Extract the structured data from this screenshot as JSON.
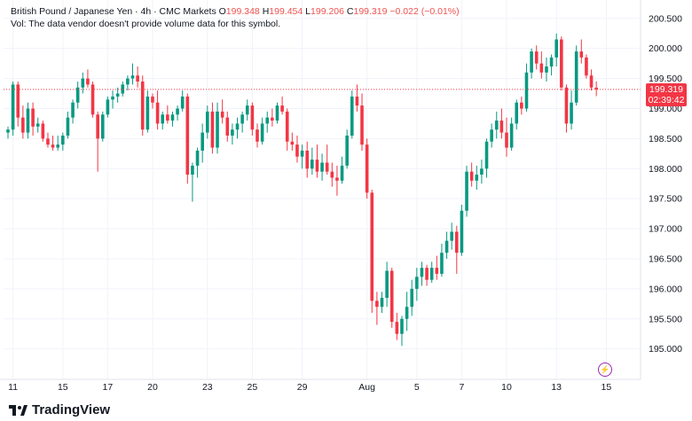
{
  "legend": {
    "symbol": "British Pound / Japanese Yen · 4h · CMC Markets",
    "o_label": "O",
    "o": "199.348",
    "h_label": "H",
    "h": "199.454",
    "l_label": "L",
    "l": "199.206",
    "c_label": "C",
    "c": "199.319",
    "change": "−0.022 (−0.01%)",
    "vol_note": "Vol: The data vendor doesn't provide volume data for this symbol."
  },
  "current_price": {
    "price": "199.319",
    "countdown": "02:39:42",
    "value": 199.319
  },
  "colors": {
    "up": "#089981",
    "down": "#f23645",
    "grid": "#f0f3fa",
    "axis_text": "#131722",
    "price_line": "#f23645"
  },
  "branding": {
    "name": "TradingView"
  },
  "chart_data": {
    "type": "candlestick",
    "title": "British Pound / Japanese Yen · 4h · CMC Markets",
    "ylim": [
      194.7,
      200.6
    ],
    "y_ticks": [
      195.0,
      195.5,
      196.0,
      196.5,
      197.0,
      197.5,
      198.0,
      198.5,
      199.0,
      199.5,
      200.0,
      200.5
    ],
    "x_ticks": [
      {
        "label": "11",
        "index": 1
      },
      {
        "label": "15",
        "index": 11
      },
      {
        "label": "17",
        "index": 20
      },
      {
        "label": "20",
        "index": 29
      },
      {
        "label": "23",
        "index": 40
      },
      {
        "label": "25",
        "index": 49
      },
      {
        "label": "29",
        "index": 59
      },
      {
        "label": "Aug",
        "index": 72
      },
      {
        "label": "5",
        "index": 82
      },
      {
        "label": "7",
        "index": 91
      },
      {
        "label": "10",
        "index": 100
      },
      {
        "label": "13",
        "index": 110
      },
      {
        "label": "15",
        "index": 120
      }
    ],
    "candles": [
      [
        198.6,
        198.7,
        198.5,
        198.65
      ],
      [
        198.65,
        199.45,
        198.55,
        199.4
      ],
      [
        199.4,
        199.45,
        198.7,
        198.85
      ],
      [
        198.85,
        199.05,
        198.5,
        198.6
      ],
      [
        198.6,
        199.1,
        198.5,
        199.0
      ],
      [
        199.0,
        199.1,
        198.55,
        198.7
      ],
      [
        198.7,
        198.85,
        198.6,
        198.75
      ],
      [
        198.75,
        198.8,
        198.45,
        198.5
      ],
      [
        198.5,
        198.6,
        198.35,
        198.4
      ],
      [
        198.4,
        198.55,
        198.3,
        198.35
      ],
      [
        198.35,
        198.55,
        198.3,
        198.4
      ],
      [
        198.4,
        198.6,
        198.3,
        198.55
      ],
      [
        198.55,
        198.95,
        198.5,
        198.85
      ],
      [
        198.85,
        199.15,
        198.75,
        199.1
      ],
      [
        199.1,
        199.45,
        199.0,
        199.35
      ],
      [
        199.35,
        199.6,
        199.25,
        199.5
      ],
      [
        199.5,
        199.65,
        199.35,
        199.4
      ],
      [
        199.4,
        199.45,
        198.85,
        198.9
      ],
      [
        198.9,
        198.95,
        197.95,
        198.5
      ],
      [
        198.5,
        198.95,
        198.45,
        198.9
      ],
      [
        198.9,
        199.2,
        198.85,
        199.15
      ],
      [
        199.15,
        199.3,
        199.0,
        199.2
      ],
      [
        199.2,
        199.35,
        199.1,
        199.25
      ],
      [
        199.25,
        199.45,
        199.2,
        199.4
      ],
      [
        199.4,
        199.55,
        199.3,
        199.5
      ],
      [
        199.5,
        199.75,
        199.4,
        199.55
      ],
      [
        199.55,
        199.7,
        199.35,
        199.45
      ],
      [
        199.45,
        199.55,
        198.55,
        198.65
      ],
      [
        198.65,
        199.3,
        198.6,
        199.2
      ],
      [
        199.2,
        199.25,
        199.0,
        199.1
      ],
      [
        199.1,
        199.3,
        198.65,
        198.75
      ],
      [
        198.75,
        198.95,
        198.65,
        198.9
      ],
      [
        198.9,
        199.05,
        198.75,
        198.8
      ],
      [
        198.8,
        198.95,
        198.7,
        198.9
      ],
      [
        198.9,
        199.05,
        198.8,
        199.0
      ],
      [
        199.0,
        199.3,
        198.95,
        199.2
      ],
      [
        199.2,
        199.25,
        197.75,
        197.9
      ],
      [
        197.9,
        198.1,
        197.45,
        198.05
      ],
      [
        198.05,
        198.35,
        197.85,
        198.3
      ],
      [
        198.3,
        198.75,
        198.1,
        198.6
      ],
      [
        198.6,
        199.05,
        198.5,
        198.95
      ],
      [
        198.95,
        199.1,
        198.25,
        198.35
      ],
      [
        198.35,
        199.1,
        198.25,
        198.95
      ],
      [
        198.95,
        199.15,
        198.75,
        198.85
      ],
      [
        198.85,
        198.95,
        198.45,
        198.55
      ],
      [
        198.55,
        198.75,
        198.4,
        198.65
      ],
      [
        198.65,
        198.85,
        198.5,
        198.75
      ],
      [
        198.75,
        198.95,
        198.6,
        198.9
      ],
      [
        198.9,
        199.15,
        198.8,
        199.05
      ],
      [
        199.05,
        199.1,
        198.55,
        198.65
      ],
      [
        198.65,
        198.75,
        198.35,
        198.45
      ],
      [
        198.45,
        198.85,
        198.4,
        198.75
      ],
      [
        198.75,
        198.95,
        198.6,
        198.85
      ],
      [
        198.85,
        199.0,
        198.7,
        198.8
      ],
      [
        198.8,
        199.1,
        198.75,
        199.05
      ],
      [
        199.05,
        199.2,
        198.9,
        198.95
      ],
      [
        198.95,
        199.0,
        198.3,
        198.45
      ],
      [
        198.45,
        198.6,
        198.3,
        198.4
      ],
      [
        198.4,
        198.55,
        198.1,
        198.2
      ],
      [
        198.2,
        198.4,
        198.0,
        198.3
      ],
      [
        198.3,
        198.45,
        197.85,
        198.0
      ],
      [
        198.0,
        198.35,
        197.9,
        198.15
      ],
      [
        198.15,
        198.4,
        197.85,
        197.95
      ],
      [
        197.95,
        198.25,
        197.8,
        198.1
      ],
      [
        198.1,
        198.4,
        197.9,
        197.95
      ],
      [
        197.95,
        198.1,
        197.7,
        197.85
      ],
      [
        197.85,
        198.05,
        197.55,
        197.8
      ],
      [
        197.8,
        198.2,
        197.75,
        198.05
      ],
      [
        198.05,
        198.65,
        198.0,
        198.55
      ],
      [
        198.55,
        199.3,
        198.5,
        199.2
      ],
      [
        199.2,
        199.4,
        198.95,
        199.05
      ],
      [
        199.05,
        199.25,
        198.3,
        198.4
      ],
      [
        198.4,
        198.5,
        197.5,
        197.6
      ],
      [
        197.6,
        197.65,
        195.6,
        195.8
      ],
      [
        195.8,
        195.95,
        195.4,
        195.7
      ],
      [
        195.7,
        195.95,
        195.6,
        195.85
      ],
      [
        195.85,
        196.45,
        195.7,
        196.3
      ],
      [
        196.3,
        196.35,
        195.35,
        195.45
      ],
      [
        195.45,
        195.6,
        195.15,
        195.25
      ],
      [
        195.25,
        195.55,
        195.05,
        195.5
      ],
      [
        195.5,
        195.95,
        195.3,
        195.7
      ],
      [
        195.7,
        196.15,
        195.55,
        196.0
      ],
      [
        196.0,
        196.35,
        195.8,
        196.2
      ],
      [
        196.2,
        196.45,
        196.05,
        196.35
      ],
      [
        196.35,
        196.4,
        196.05,
        196.15
      ],
      [
        196.15,
        196.45,
        196.1,
        196.35
      ],
      [
        196.35,
        196.55,
        196.15,
        196.25
      ],
      [
        196.25,
        196.75,
        196.2,
        196.6
      ],
      [
        196.6,
        196.95,
        196.5,
        196.8
      ],
      [
        196.8,
        197.1,
        196.65,
        196.95
      ],
      [
        196.95,
        197.05,
        196.25,
        196.6
      ],
      [
        196.6,
        197.4,
        196.55,
        197.3
      ],
      [
        197.3,
        198.05,
        197.2,
        197.95
      ],
      [
        197.95,
        198.1,
        197.7,
        197.8
      ],
      [
        197.8,
        198.05,
        197.65,
        197.9
      ],
      [
        197.9,
        198.15,
        197.75,
        198.0
      ],
      [
        198.0,
        198.5,
        197.85,
        198.45
      ],
      [
        198.45,
        198.75,
        198.35,
        198.65
      ],
      [
        198.65,
        198.95,
        198.5,
        198.8
      ],
      [
        198.8,
        199.0,
        198.5,
        198.6
      ],
      [
        198.6,
        198.85,
        198.2,
        198.35
      ],
      [
        198.35,
        198.85,
        198.3,
        198.75
      ],
      [
        198.75,
        199.15,
        198.65,
        199.1
      ],
      [
        199.1,
        199.2,
        198.9,
        199.0
      ],
      [
        199.0,
        199.75,
        198.95,
        199.6
      ],
      [
        199.6,
        200.0,
        199.5,
        199.95
      ],
      [
        199.95,
        200.05,
        199.65,
        199.75
      ],
      [
        199.75,
        199.95,
        199.5,
        199.6
      ],
      [
        199.6,
        199.85,
        199.45,
        199.7
      ],
      [
        199.7,
        199.9,
        199.55,
        199.85
      ],
      [
        199.85,
        200.25,
        199.7,
        200.15
      ],
      [
        200.15,
        200.2,
        199.3,
        199.35
      ],
      [
        199.35,
        199.4,
        198.6,
        198.75
      ],
      [
        198.75,
        199.3,
        198.65,
        199.1
      ],
      [
        199.1,
        200.05,
        199.05,
        199.95
      ],
      [
        199.95,
        200.15,
        199.75,
        199.85
      ],
      [
        199.85,
        199.9,
        199.5,
        199.55
      ],
      [
        199.55,
        199.65,
        199.3,
        199.35
      ],
      [
        199.348,
        199.454,
        199.206,
        199.319
      ]
    ]
  }
}
